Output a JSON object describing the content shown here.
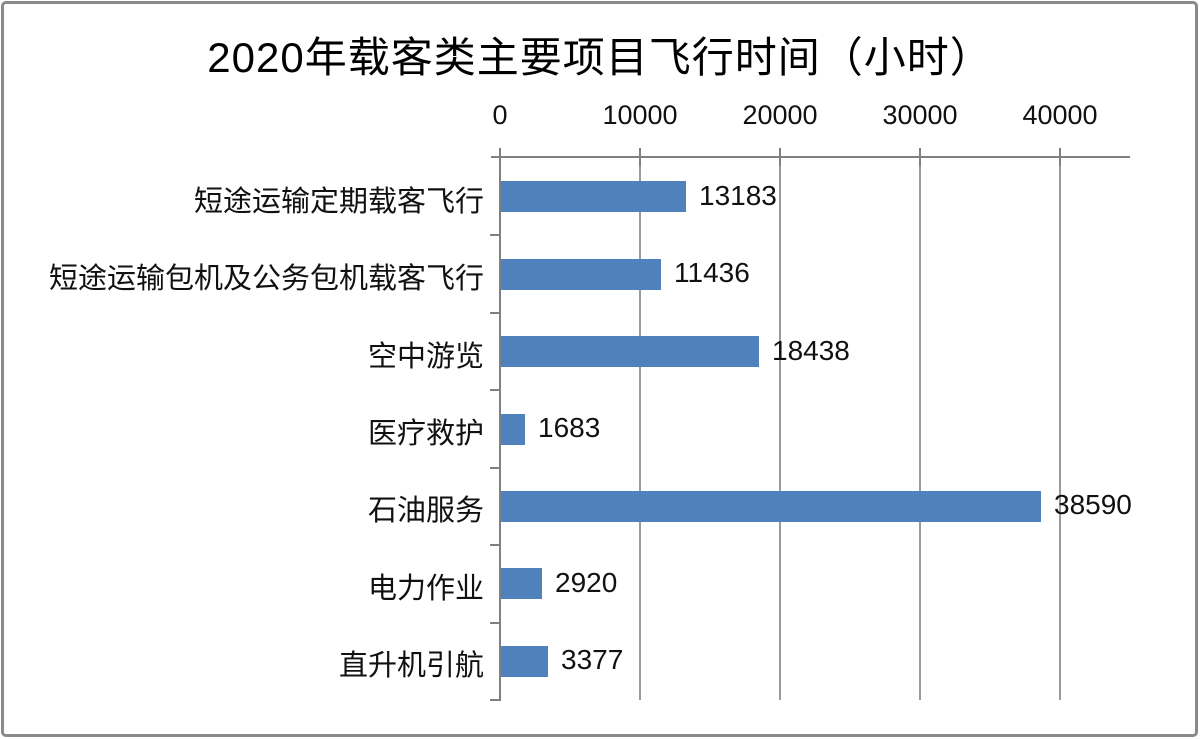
{
  "chart_data": {
    "type": "bar",
    "orientation": "horizontal",
    "title": "2020年载客类主要项目飞行时间（小时）",
    "categories": [
      "短途运输定期载客飞行",
      "短途运输包机及公务包机载客飞行",
      "空中游览",
      "医疗救护",
      "石油服务",
      "电力作业",
      "直升机引航"
    ],
    "values": [
      13183,
      11436,
      18438,
      1683,
      38590,
      2920,
      3377
    ],
    "data_labels": [
      "13183",
      "11436",
      "18438",
      "1683",
      "38590",
      "2920",
      "3377"
    ],
    "xlabel": "",
    "ylabel": "",
    "x_axis": {
      "position": "top",
      "ticks": [
        0,
        10000,
        20000,
        30000,
        40000
      ],
      "tick_labels": [
        "0",
        "10000",
        "20000",
        "30000",
        "40000"
      ],
      "min": 0,
      "max": 45000
    },
    "grid": true,
    "legend": "none",
    "colors": {
      "bar": "#4F81BD",
      "axis": "#808080",
      "gridline": "#9b9b9b",
      "text": "#111111",
      "border": "#8a8a8a",
      "background": "#ffffff"
    }
  }
}
